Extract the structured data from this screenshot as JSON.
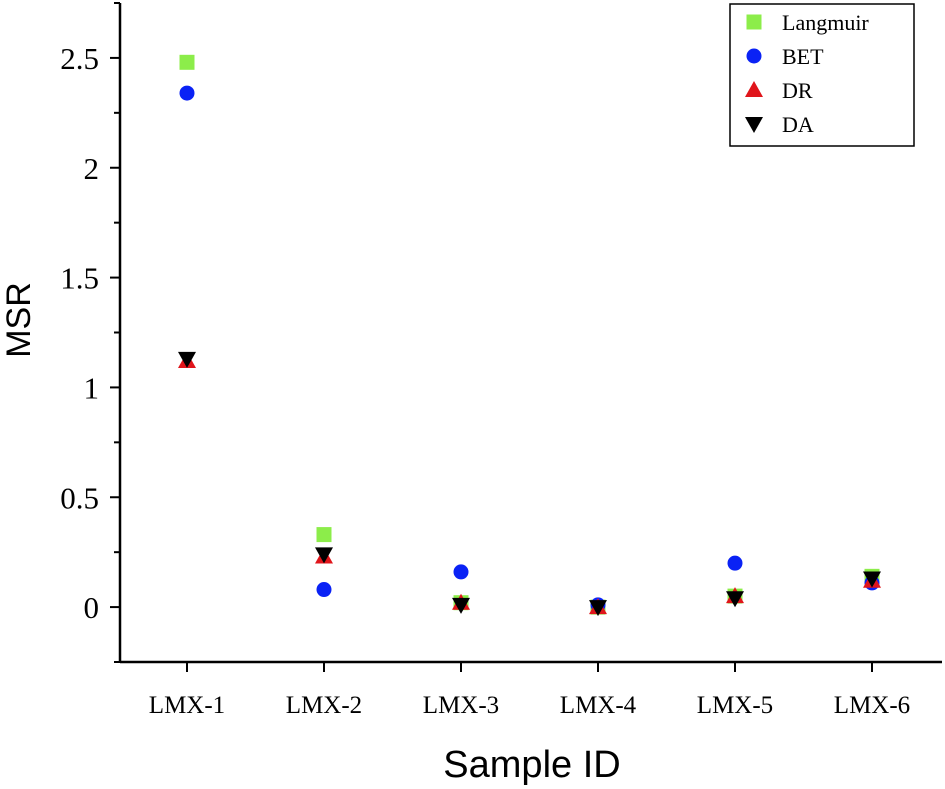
{
  "chart_data": {
    "type": "scatter",
    "title": "",
    "xlabel": "Sample ID",
    "ylabel": "MSR",
    "categories": [
      "LMX-1",
      "LMX-2",
      "LMX-3",
      "LMX-4",
      "LMX-5",
      "LMX-6"
    ],
    "ylim": [
      -0.25,
      2.75
    ],
    "yticks": [
      0,
      0.5,
      1,
      1.5,
      2,
      2.5
    ],
    "ytick_labels": [
      "0",
      "0.5",
      "1",
      "1.5",
      "2",
      "2.5"
    ],
    "grid": false,
    "legend_position": "top-right",
    "series": [
      {
        "name": "Langmuir",
        "marker": "square",
        "color": "#8ced4a",
        "values": [
          2.48,
          0.33,
          0.02,
          0.0,
          0.05,
          0.14
        ]
      },
      {
        "name": "BET",
        "marker": "circle",
        "color": "#0a22f5",
        "values": [
          2.34,
          0.08,
          0.16,
          0.01,
          0.2,
          0.11
        ]
      },
      {
        "name": "DR",
        "marker": "triangle-up",
        "color": "#e0151b",
        "values": [
          1.12,
          0.23,
          0.02,
          0.0,
          0.05,
          0.12
        ]
      },
      {
        "name": "DA",
        "marker": "triangle-down",
        "color": "#000000",
        "values": [
          1.13,
          0.24,
          0.01,
          0.0,
          0.04,
          0.13
        ]
      }
    ]
  }
}
